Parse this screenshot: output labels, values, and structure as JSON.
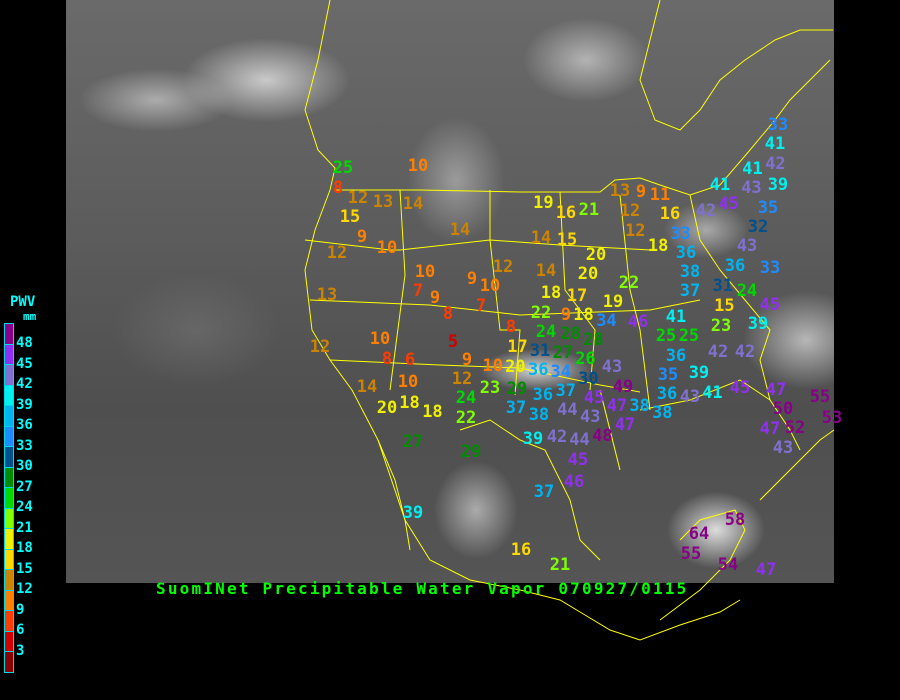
{
  "title": "SuomINet Precipitable Water Vapor 070927/0115",
  "legend": {
    "title": "PWV",
    "unit": "mm",
    "labels": [
      "48",
      "45",
      "42",
      "39",
      "36",
      "33",
      "30",
      "27",
      "24",
      "21",
      "18",
      "15",
      "12",
      "9",
      "6",
      "3"
    ],
    "colors": [
      "#8b0000",
      "#d00000",
      "#ff3c00",
      "#ff8000",
      "#cc8400",
      "#ffd800",
      "#f0f000",
      "#80ff00",
      "#00d800",
      "#008c00",
      "#00508c",
      "#1e8cff",
      "#00b4f0",
      "#00f0f0",
      "#8070d0",
      "#9030f0",
      "#880088"
    ]
  },
  "border_color": "#ffff00",
  "stations": [
    25,
    8,
    12,
    13,
    14,
    15,
    10,
    9,
    10,
    12,
    14,
    13,
    10,
    7,
    9,
    8,
    9,
    10,
    7,
    12,
    12,
    10,
    8,
    6,
    5,
    14,
    10,
    20,
    18,
    18,
    9,
    12,
    10,
    22,
    24,
    23,
    29,
    20,
    8,
    17,
    27,
    29,
    39,
    19,
    16,
    21,
    13,
    9,
    12,
    12,
    11,
    16,
    14,
    15,
    18,
    33,
    36,
    38,
    37,
    14,
    20,
    20,
    22,
    18,
    17,
    19,
    18,
    9,
    22,
    24,
    46,
    41,
    25,
    33,
    41,
    42,
    41,
    39,
    43,
    41,
    45,
    42,
    35,
    32,
    43,
    36,
    33,
    31,
    24,
    15,
    45,
    23,
    39,
    28,
    34,
    31,
    27,
    28,
    26,
    30,
    43,
    36,
    34,
    37,
    36,
    45,
    49,
    47,
    47,
    38,
    37,
    38,
    44,
    43,
    48,
    39,
    42,
    44,
    45,
    46,
    37,
    25,
    42,
    42,
    36,
    39,
    35,
    36,
    38,
    43,
    41,
    45,
    47,
    55,
    50,
    53,
    47,
    52,
    43,
    58,
    64,
    55,
    54,
    47,
    16,
    21
  ]
}
